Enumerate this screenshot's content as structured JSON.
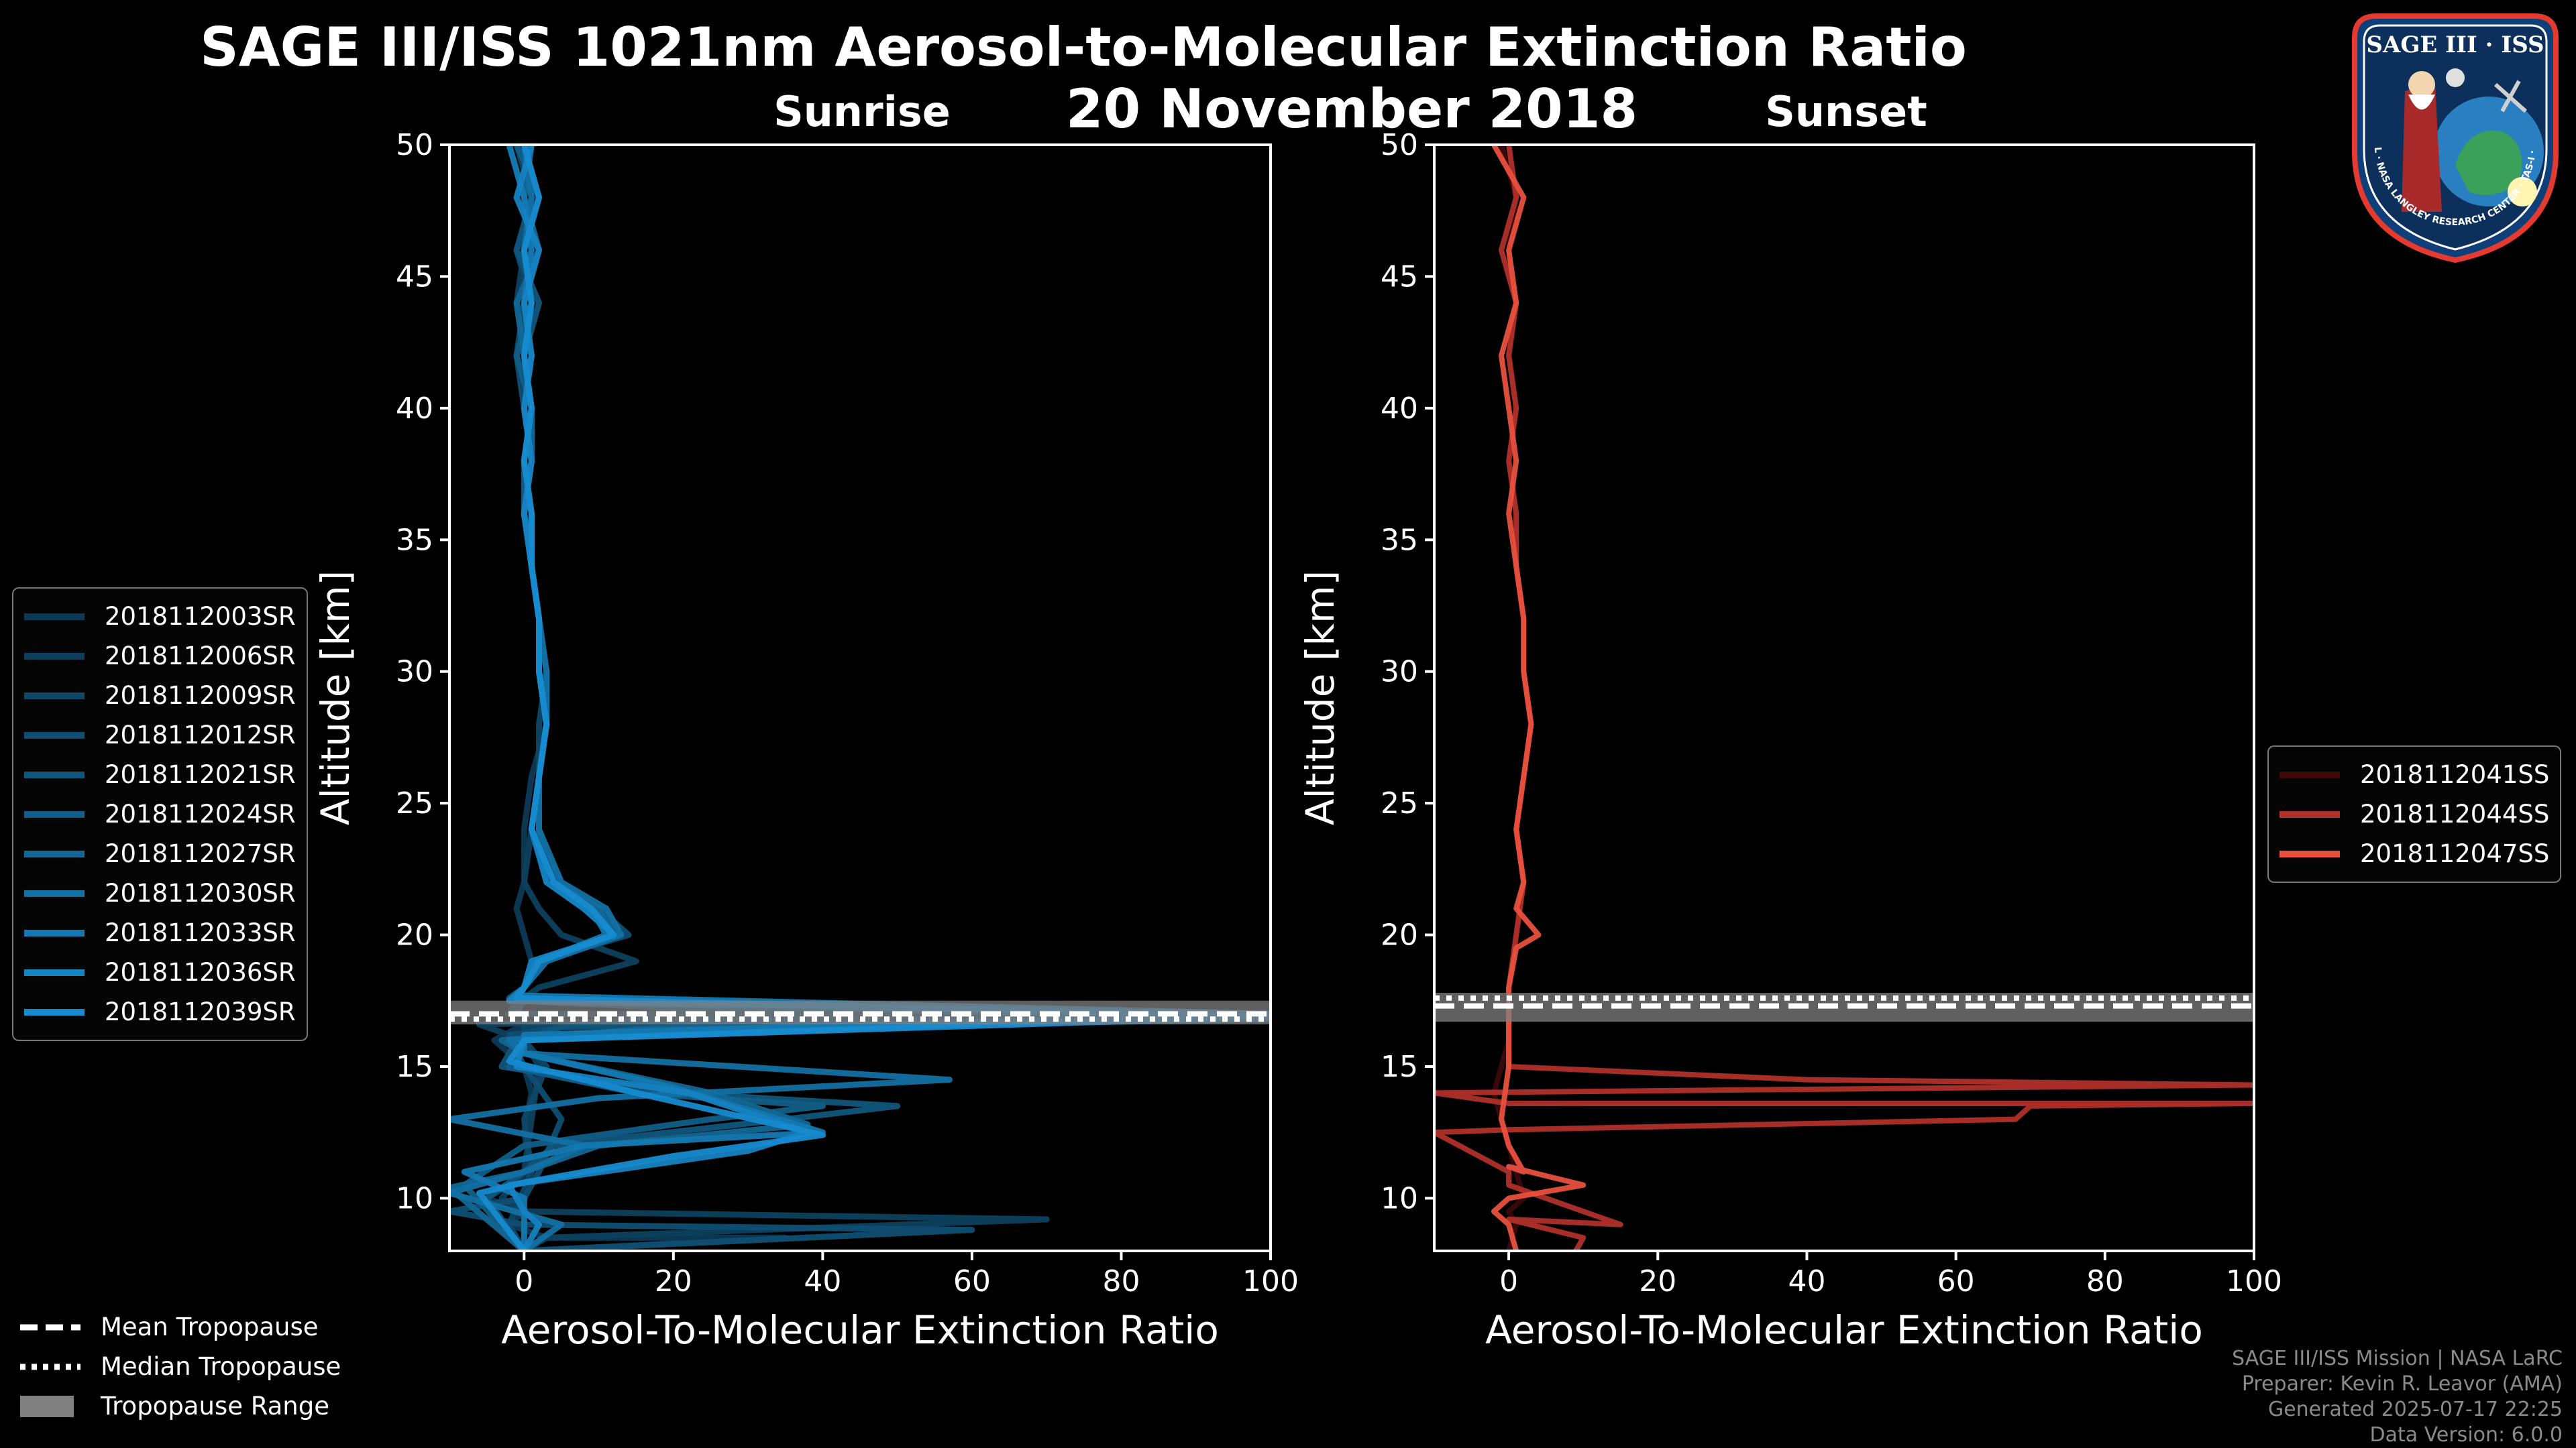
{
  "header": {
    "title": "SAGE III/ISS 1021nm Aerosol-to-Molecular Extinction Ratio",
    "subtitle": "20 November 2018"
  },
  "colors": {
    "background": "#000000",
    "sunrise_series": [
      "#0c3a56",
      "#0d405e",
      "#0e4767",
      "#0f4e71",
      "#10567c",
      "#115e88",
      "#126795",
      "#1370a3",
      "#1479b2",
      "#1582c1",
      "#168bcf"
    ],
    "sunset_series": [
      "#3c0808",
      "#b0302a",
      "#e8503e"
    ],
    "tropopause_range": "#808080"
  },
  "legend_sunrise": [
    "2018112003SR",
    "2018112006SR",
    "2018112009SR",
    "2018112012SR",
    "2018112021SR",
    "2018112024SR",
    "2018112027SR",
    "2018112030SR",
    "2018112033SR",
    "2018112036SR",
    "2018112039SR"
  ],
  "legend_sunset": [
    "2018112041SS",
    "2018112044SS",
    "2018112047SS"
  ],
  "legend_tropopause": {
    "mean": "Mean Tropopause",
    "median": "Median Tropopause",
    "range": "Tropopause Range"
  },
  "footer": {
    "line1": "SAGE III/ISS Mission | NASA LaRC",
    "line2": "Preparer: Kevin R. Leavor (AMA)",
    "line3": "Generated 2025-07-17 22:25",
    "line4": "Data Version: 6.0.0"
  },
  "badge": {
    "top_text": "SAGE III · ISS",
    "ring_text": "BALL · NASA LANGLEY RESEARCH CENTER · TAS-I · ESA"
  },
  "chart_data": [
    {
      "type": "line",
      "title": "Sunrise",
      "xlabel": "Aerosol-To-Molecular Extinction Ratio",
      "ylabel": "Altitude [km]",
      "xlim": [
        -10,
        100
      ],
      "ylim": [
        8,
        50
      ],
      "xticks": [
        0,
        20,
        40,
        60,
        80,
        100
      ],
      "yticks": [
        10,
        15,
        20,
        25,
        30,
        35,
        40,
        45,
        50
      ],
      "tropopause": {
        "mean": 17.0,
        "median": 16.8,
        "range": [
          16.6,
          17.5
        ]
      },
      "series": [
        {
          "name": "2018112003SR",
          "x": [
            -2,
            0,
            1,
            -1,
            0,
            1,
            0,
            1,
            1,
            2,
            2,
            3,
            1,
            0,
            0,
            -1,
            0,
            1,
            0,
            -2,
            70,
            0,
            -4,
            0,
            1,
            0,
            1,
            -5,
            0,
            -2,
            3,
            35,
            0,
            1
          ],
          "y": [
            50,
            48,
            46,
            44,
            42,
            40,
            38,
            36,
            34,
            32,
            30,
            28,
            26,
            24,
            22,
            21,
            20,
            19,
            18,
            17,
            17,
            16.6,
            16,
            15,
            14,
            12.5,
            11,
            10,
            9.5,
            9,
            8.5,
            8.5,
            8,
            8
          ]
        },
        {
          "name": "2018112006SR",
          "x": [
            -1,
            1,
            0,
            -1,
            1,
            0,
            1,
            0,
            1,
            2,
            2,
            3,
            2,
            1,
            0,
            2,
            5,
            15,
            2,
            0,
            -1,
            40,
            -6,
            0,
            2,
            1,
            0,
            -3,
            0,
            70,
            3,
            0
          ],
          "y": [
            50,
            48,
            46,
            44,
            42,
            40,
            38,
            36,
            34,
            32,
            30,
            28,
            26,
            24,
            22,
            21,
            20,
            19,
            18,
            17.6,
            17,
            16.9,
            16.6,
            16,
            15,
            13,
            11,
            10,
            9.5,
            9.2,
            8.5,
            8
          ]
        },
        {
          "name": "2018112009SR",
          "x": [
            0,
            2,
            -1,
            1,
            0,
            1,
            1,
            0,
            1,
            2,
            3,
            2,
            2,
            1,
            3,
            8,
            12,
            1,
            0,
            -1,
            45,
            0,
            0,
            3,
            0,
            1,
            -2,
            0
          ],
          "y": [
            50,
            48,
            46,
            44,
            42,
            40,
            38,
            36,
            34,
            32,
            30,
            28,
            26,
            24,
            22,
            21,
            20,
            19,
            18,
            17.5,
            16.9,
            16.5,
            16,
            15,
            13,
            11,
            9,
            8
          ]
        },
        {
          "name": "2018112012SR",
          "x": [
            1,
            0,
            2,
            0,
            -1,
            0,
            1,
            0,
            1,
            2,
            3,
            3,
            2,
            1,
            4,
            10,
            14,
            2,
            0,
            -1,
            100,
            10,
            -2,
            0,
            5,
            2,
            0,
            -10,
            0,
            60,
            0
          ],
          "y": [
            50,
            48,
            46,
            44,
            42,
            40,
            38,
            36,
            34,
            32,
            30,
            28,
            26,
            24,
            22,
            21,
            20,
            19,
            18,
            17.5,
            16.9,
            16.7,
            16.2,
            15,
            13,
            11,
            10,
            9.5,
            9,
            8.8,
            8
          ]
        },
        {
          "name": "2018112021SR",
          "x": [
            0,
            1,
            -1,
            2,
            0,
            1,
            0,
            1,
            1,
            2,
            2,
            3,
            2,
            2,
            3,
            8,
            12,
            3,
            0,
            -2,
            100,
            5,
            -1,
            -3,
            20,
            50,
            35,
            4,
            0,
            -5,
            0
          ],
          "y": [
            50,
            48,
            46,
            44,
            42,
            40,
            38,
            36,
            34,
            32,
            30,
            28,
            26,
            24,
            22,
            21,
            20,
            19,
            18,
            17.6,
            16.8,
            16.5,
            16,
            15,
            14,
            13.5,
            13,
            12,
            11,
            10,
            8
          ]
        },
        {
          "name": "2018112024SR",
          "x": [
            -1,
            2,
            0,
            1,
            -1,
            1,
            0,
            0,
            1,
            2,
            2,
            3,
            2,
            1,
            5,
            9,
            13,
            2,
            0,
            -1,
            100,
            20,
            0,
            -2,
            15,
            40,
            25,
            0,
            -8,
            0
          ],
          "y": [
            50,
            48,
            46,
            44,
            42,
            40,
            38,
            36,
            34,
            32,
            30,
            28,
            26,
            24,
            22,
            21,
            20,
            19,
            18,
            17.6,
            16.8,
            16.5,
            16,
            15,
            14,
            13.5,
            13,
            12,
            10.5,
            8
          ]
        },
        {
          "name": "2018112027SR",
          "x": [
            1,
            0,
            2,
            -1,
            0,
            1,
            1,
            0,
            1,
            2,
            2,
            3,
            2,
            1,
            4,
            10,
            12,
            2,
            0,
            -2,
            100,
            15,
            -3,
            0,
            25,
            38,
            10,
            0,
            -10,
            0
          ],
          "y": [
            50,
            48,
            46,
            44,
            42,
            40,
            38,
            36,
            34,
            32,
            30,
            28,
            26,
            24,
            22,
            21,
            20,
            19,
            18,
            17.5,
            16.8,
            16.4,
            16,
            15.5,
            14,
            12.8,
            12,
            11,
            10.4,
            8
          ]
        },
        {
          "name": "2018112030SR",
          "x": [
            0,
            1,
            0,
            1,
            0,
            1,
            0,
            1,
            1,
            2,
            3,
            3,
            2,
            2,
            5,
            11,
            13,
            3,
            0,
            -1,
            100,
            55,
            -2,
            0,
            57,
            10,
            -10,
            8,
            0,
            -10,
            5,
            0
          ],
          "y": [
            50,
            48,
            46,
            44,
            42,
            40,
            38,
            36,
            34,
            32,
            30,
            28,
            26,
            24,
            22,
            21,
            20,
            19,
            18,
            17.6,
            16.9,
            16.6,
            16,
            15.5,
            14.5,
            13.8,
            13,
            12,
            11,
            10.2,
            9,
            8
          ]
        },
        {
          "name": "2018112033SR",
          "x": [
            -2,
            0,
            1,
            0,
            1,
            0,
            1,
            0,
            1,
            2,
            2,
            3,
            2,
            1,
            4,
            9,
            11,
            2,
            0,
            -1,
            100,
            48,
            0,
            0,
            20,
            40,
            8,
            -8,
            0,
            0
          ],
          "y": [
            50,
            48,
            46,
            44,
            42,
            40,
            38,
            36,
            34,
            32,
            30,
            28,
            26,
            24,
            22,
            21,
            20,
            19,
            18,
            17.7,
            17,
            16.6,
            16.2,
            15.5,
            14.2,
            12.5,
            12,
            11,
            10,
            8
          ]
        },
        {
          "name": "2018112036SR",
          "x": [
            1,
            -1,
            2,
            0,
            1,
            0,
            1,
            0,
            1,
            2,
            2,
            3,
            2,
            1,
            3,
            8,
            12,
            1,
            0,
            -2,
            100,
            50,
            0,
            -1,
            22,
            38,
            30,
            -2,
            0,
            2,
            0
          ],
          "y": [
            50,
            48,
            46,
            44,
            42,
            40,
            38,
            36,
            34,
            32,
            30,
            28,
            26,
            24,
            22,
            21,
            20,
            19,
            18,
            17.5,
            17,
            16.5,
            16,
            15,
            14,
            12.5,
            11.8,
            10.5,
            9.5,
            9,
            8
          ]
        },
        {
          "name": "2018112039SR",
          "x": [
            0,
            2,
            0,
            1,
            0,
            1,
            0,
            1,
            1,
            2,
            2,
            3,
            2,
            1,
            4,
            9,
            12,
            2,
            0,
            -1,
            100,
            55,
            0,
            -2,
            15,
            40,
            20,
            0,
            -6,
            0
          ],
          "y": [
            50,
            48,
            46,
            44,
            42,
            40,
            38,
            36,
            34,
            32,
            30,
            28,
            26,
            24,
            22,
            21,
            20,
            19,
            18,
            17.6,
            16.9,
            16.5,
            16,
            15.2,
            14,
            12.4,
            11.6,
            10.6,
            10.2,
            8
          ]
        }
      ]
    },
    {
      "type": "line",
      "title": "Sunset",
      "xlabel": "Aerosol-To-Molecular Extinction Ratio",
      "ylabel": "Altitude [km]",
      "xlim": [
        -10,
        100
      ],
      "ylim": [
        8,
        50
      ],
      "xticks": [
        0,
        20,
        40,
        60,
        80,
        100
      ],
      "yticks": [
        10,
        15,
        20,
        25,
        30,
        35,
        40,
        45,
        50
      ],
      "tropopause": {
        "mean": 17.3,
        "median": 17.6,
        "range": [
          16.7,
          17.8
        ]
      },
      "series": [
        {
          "name": "2018112041SS",
          "x": [
            -1,
            1,
            0,
            1,
            0,
            1,
            0,
            1,
            1,
            2,
            2,
            3,
            2,
            1,
            2,
            1,
            0,
            0,
            0,
            -2,
            0,
            2,
            0,
            1,
            0
          ],
          "y": [
            50,
            48,
            46,
            44,
            42,
            40,
            38,
            36,
            34,
            32,
            30,
            28,
            26,
            24,
            22,
            20,
            18,
            17,
            16,
            14,
            12,
            10,
            9.5,
            9,
            8
          ]
        },
        {
          "name": "2018112044SS",
          "x": [
            0,
            1,
            -1,
            1,
            0,
            1,
            0,
            1,
            1,
            2,
            2,
            3,
            2,
            1,
            2,
            1,
            0,
            0,
            0,
            40,
            100,
            -10,
            0,
            100,
            70,
            68,
            0,
            -10,
            0,
            0,
            15,
            0,
            10,
            9
          ],
          "y": [
            50,
            48,
            46,
            44,
            42,
            40,
            38,
            36,
            34,
            32,
            30,
            28,
            26,
            24,
            22,
            20,
            18,
            17,
            15,
            14.5,
            14.3,
            14,
            13.6,
            13.6,
            13.5,
            13,
            12.6,
            12.5,
            11,
            10.5,
            9,
            9.2,
            8.5,
            8
          ]
        },
        {
          "name": "2018112047SS",
          "x": [
            -2,
            2,
            0,
            1,
            -1,
            0,
            1,
            0,
            1,
            2,
            2,
            3,
            2,
            1,
            2,
            1,
            4,
            1,
            0,
            0,
            0,
            -1,
            0,
            2,
            0,
            10,
            0,
            -2,
            0,
            1
          ],
          "y": [
            50,
            48,
            46,
            44,
            42,
            40,
            38,
            36,
            34,
            32,
            30,
            28,
            26,
            24,
            22,
            21,
            20,
            19.5,
            18,
            17,
            15,
            13,
            12,
            11,
            11.2,
            10.5,
            10,
            9.5,
            9,
            8
          ]
        }
      ]
    }
  ]
}
